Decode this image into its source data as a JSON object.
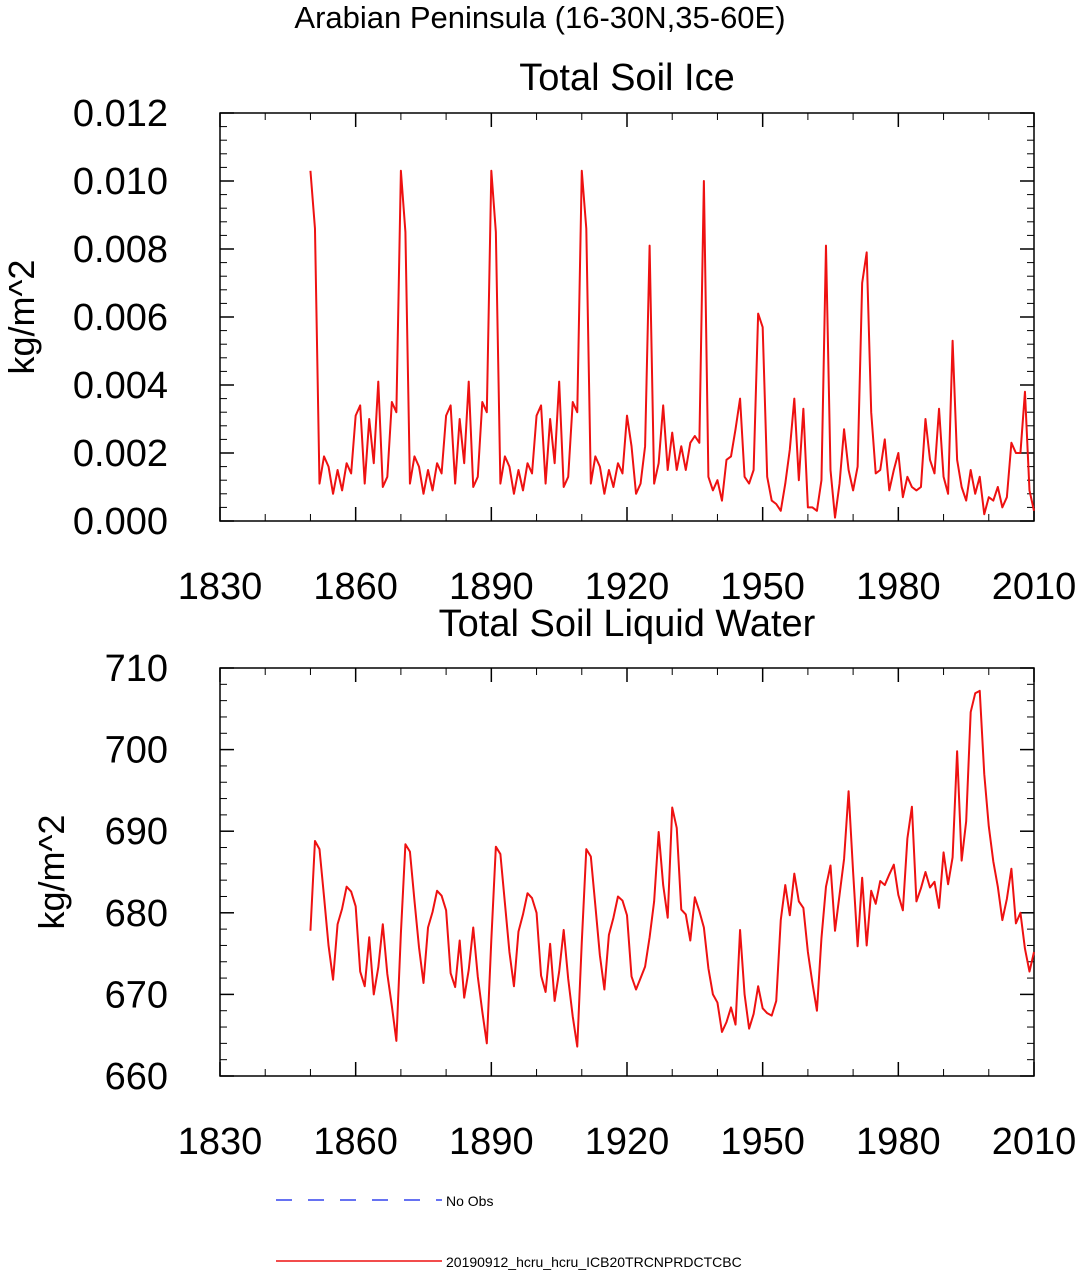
{
  "figure": {
    "title": "Arabian Peninsula (16-30N,35-60E)"
  },
  "legend": [
    {
      "label": "No Obs",
      "color": "#3344ee",
      "style": "dashed"
    },
    {
      "label": "20190912_hcru_hcru_ICB20TRCNPRDCTCBC",
      "color": "#ee1111",
      "style": "solid"
    }
  ],
  "chart_data": [
    {
      "type": "line",
      "title": "Total Soil Ice",
      "xlabel": "",
      "ylabel": "kg/m^2",
      "xlim": [
        1830,
        2010
      ],
      "ylim": [
        0,
        0.012
      ],
      "xticks": [
        1830,
        1860,
        1890,
        1920,
        1950,
        1980,
        2010
      ],
      "xtick_labels": [
        "1830",
        "1860",
        "1890",
        "1920",
        "1950",
        "1980",
        "2010"
      ],
      "yticks": [
        0,
        0.002,
        0.004,
        0.006,
        0.008,
        0.01,
        0.012
      ],
      "ytick_labels": [
        "0.000",
        "0.002",
        "0.004",
        "0.006",
        "0.008",
        "0.010",
        "0.012"
      ],
      "x_start": 1850,
      "x_step": 1,
      "series": [
        {
          "name": "20190912_hcru_hcru_ICB20TRCNPRDCTCBC",
          "color": "#ee1111",
          "values": [
            0.0103,
            0.0086,
            0.0011,
            0.0019,
            0.0016,
            0.0008,
            0.0015,
            0.0009,
            0.0017,
            0.0014,
            0.0031,
            0.0034,
            0.0011,
            0.003,
            0.0017,
            0.0041,
            0.001,
            0.0013,
            0.0035,
            0.0032,
            0.0103,
            0.0085,
            0.0011,
            0.0019,
            0.0016,
            0.0008,
            0.0015,
            0.0009,
            0.0017,
            0.0014,
            0.0031,
            0.0034,
            0.0011,
            0.003,
            0.0017,
            0.0041,
            0.001,
            0.0013,
            0.0035,
            0.0032,
            0.0103,
            0.0085,
            0.0011,
            0.0019,
            0.0016,
            0.0008,
            0.0015,
            0.0009,
            0.0017,
            0.0014,
            0.0031,
            0.0034,
            0.0011,
            0.003,
            0.0017,
            0.0041,
            0.001,
            0.0013,
            0.0035,
            0.0032,
            0.0103,
            0.0086,
            0.0011,
            0.0019,
            0.0016,
            0.0008,
            0.0015,
            0.001,
            0.0017,
            0.0014,
            0.0031,
            0.0022,
            0.0008,
            0.0011,
            0.0022,
            0.0081,
            0.0011,
            0.0017,
            0.0034,
            0.0015,
            0.0026,
            0.0015,
            0.0022,
            0.0015,
            0.0023,
            0.0025,
            0.0023,
            0.01,
            0.0013,
            0.0009,
            0.0012,
            0.0006,
            0.0018,
            0.0019,
            0.0027,
            0.0036,
            0.0013,
            0.0011,
            0.0015,
            0.0061,
            0.0057,
            0.0013,
            0.0006,
            0.0005,
            0.0003,
            0.0011,
            0.0021,
            0.0036,
            0.0012,
            0.0033,
            0.0004,
            0.0004,
            0.0003,
            0.0012,
            0.0081,
            0.0015,
            0.0001,
            0.0011,
            0.0027,
            0.0015,
            0.0009,
            0.0016,
            0.007,
            0.0079,
            0.0032,
            0.0014,
            0.0015,
            0.0024,
            0.0009,
            0.0015,
            0.002,
            0.0007,
            0.0013,
            0.001,
            0.0009,
            0.001,
            0.003,
            0.0018,
            0.0014,
            0.0033,
            0.0013,
            0.0008,
            0.0053,
            0.0018,
            0.001,
            0.0006,
            0.0015,
            0.0008,
            0.0013,
            0.0002,
            0.0007,
            0.0006,
            0.001,
            0.0004,
            0.0007,
            0.0023,
            0.002,
            0.002,
            0.0038,
            0.0009,
            0.0003
          ]
        }
      ]
    },
    {
      "type": "line",
      "title": "Total Soil Liquid Water",
      "xlabel": "",
      "ylabel": "kg/m^2",
      "xlim": [
        1830,
        2010
      ],
      "ylim": [
        660,
        710
      ],
      "xticks": [
        1830,
        1860,
        1890,
        1920,
        1950,
        1980,
        2010
      ],
      "xtick_labels": [
        "1830",
        "1860",
        "1890",
        "1920",
        "1950",
        "1980",
        "2010"
      ],
      "yticks": [
        660,
        670,
        680,
        690,
        700,
        710
      ],
      "ytick_labels": [
        "660",
        "670",
        "680",
        "690",
        "700",
        "710"
      ],
      "x_start": 1850,
      "x_step": 1,
      "series": [
        {
          "name": "20190912_hcru_hcru_ICB20TRCNPRDCTCBC",
          "color": "#ee1111",
          "values": [
            677.8,
            688.8,
            687.8,
            682.0,
            676.0,
            671.8,
            678.6,
            680.5,
            683.2,
            682.6,
            680.8,
            672.8,
            671.0,
            677.0,
            670.0,
            673.3,
            678.6,
            672.5,
            668.6,
            664.3,
            677.5,
            688.4,
            687.5,
            681.5,
            675.8,
            671.4,
            678.2,
            680.1,
            682.7,
            682.1,
            680.3,
            672.6,
            670.9,
            676.6,
            669.6,
            673.0,
            678.2,
            672.2,
            667.9,
            664.0,
            676.7,
            688.1,
            687.2,
            681.2,
            675.2,
            671.0,
            677.7,
            679.8,
            682.4,
            681.8,
            680.0,
            672.3,
            670.3,
            676.2,
            669.2,
            672.8,
            677.9,
            671.9,
            667.3,
            663.6,
            676.4,
            687.8,
            686.9,
            680.9,
            674.8,
            670.6,
            677.3,
            679.4,
            682.0,
            681.5,
            679.7,
            672.2,
            670.6,
            672.0,
            673.4,
            677.0,
            681.4,
            689.9,
            683.4,
            679.4,
            692.9,
            690.4,
            680.4,
            679.8,
            676.6,
            681.9,
            680.2,
            678.2,
            673.2,
            670.0,
            669.0,
            665.4,
            666.6,
            668.4,
            666.3,
            677.9,
            670.0,
            665.8,
            667.6,
            671.0,
            668.3,
            667.7,
            667.4,
            669.2,
            679.1,
            683.4,
            679.7,
            684.8,
            681.4,
            680.6,
            675.2,
            671.4,
            668.0,
            676.9,
            683.2,
            685.8,
            677.8,
            682.2,
            686.6,
            694.9,
            685.0,
            675.9,
            684.3,
            676.0,
            682.7,
            681.1,
            683.9,
            683.4,
            684.7,
            685.9,
            682.2,
            680.3,
            689.1,
            693.0,
            681.4,
            683.0,
            685.0,
            683.1,
            683.8,
            680.6,
            687.4,
            683.5,
            686.8,
            699.8,
            686.4,
            691.2,
            704.6,
            706.9,
            707.2,
            697.0,
            690.6,
            686.3,
            683.2,
            679.1,
            681.7,
            685.4,
            678.7,
            680.0,
            675.6,
            672.8,
            675.2
          ]
        }
      ]
    }
  ]
}
